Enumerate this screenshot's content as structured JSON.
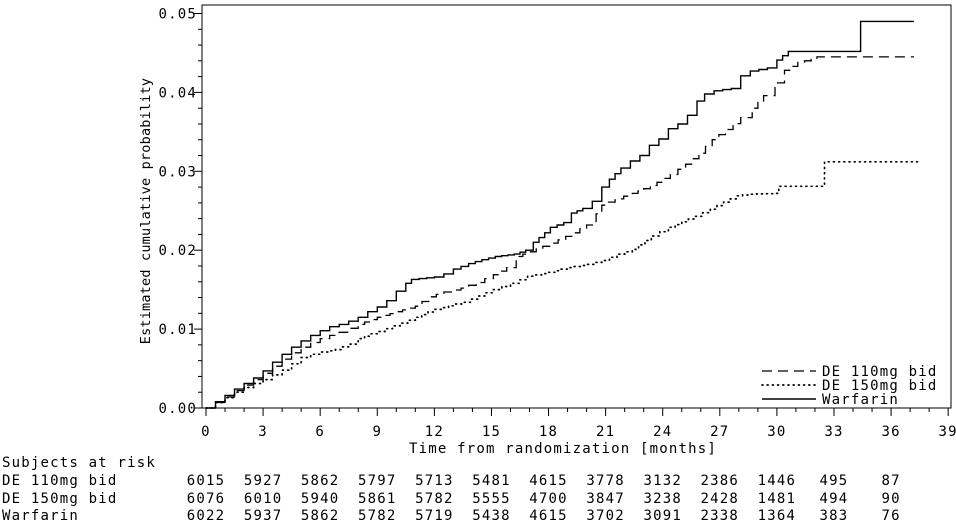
{
  "chart_data": {
    "type": "line",
    "subtype": "kaplan-meier-step",
    "title": "",
    "xlabel": "Time from randomization [months]",
    "ylabel": "Estimated cumulative probability",
    "xlim": [
      0,
      39
    ],
    "ylim": [
      0,
      0.05
    ],
    "x_ticks": [
      0,
      3,
      6,
      9,
      12,
      15,
      18,
      21,
      24,
      27,
      30,
      33,
      36,
      39
    ],
    "x_minor_step": 1,
    "y_ticks": [
      {
        "value": 0.0,
        "label": "0.00"
      },
      {
        "value": 0.01,
        "label": "0.01"
      },
      {
        "value": 0.02,
        "label": "0.02"
      },
      {
        "value": 0.03,
        "label": "0.03"
      },
      {
        "value": 0.04,
        "label": "0.04"
      },
      {
        "value": 0.05,
        "label": "0.05"
      }
    ],
    "y_minor_step": 0.002,
    "grid": false,
    "legend_position": "inside-bottom-right",
    "series": [
      {
        "name": "DE 110mg bid",
        "style": "dashed",
        "color": "#000000",
        "points": [
          [
            0,
            0
          ],
          [
            0.5,
            0.0007
          ],
          [
            1,
            0.0014
          ],
          [
            1.5,
            0.0022
          ],
          [
            2,
            0.0029
          ],
          [
            2.5,
            0.0036
          ],
          [
            3,
            0.0044
          ],
          [
            3.5,
            0.0053
          ],
          [
            4,
            0.0062
          ],
          [
            4.5,
            0.007
          ],
          [
            5,
            0.0077
          ],
          [
            5.5,
            0.0083
          ],
          [
            6,
            0.0088
          ],
          [
            6.5,
            0.0092
          ],
          [
            7,
            0.0096
          ],
          [
            7.5,
            0.0101
          ],
          [
            8,
            0.0106
          ],
          [
            9,
            0.0115
          ],
          [
            10,
            0.0122
          ],
          [
            11,
            0.0129
          ],
          [
            11.7,
            0.0141
          ],
          [
            12.5,
            0.0147
          ],
          [
            13.4,
            0.0152
          ],
          [
            14.2,
            0.0159
          ],
          [
            15.1,
            0.0169
          ],
          [
            15.8,
            0.0178
          ],
          [
            16.3,
            0.0192
          ],
          [
            17,
            0.0198
          ],
          [
            17.7,
            0.0205
          ],
          [
            18.5,
            0.0213
          ],
          [
            19.3,
            0.0222
          ],
          [
            20,
            0.0232
          ],
          [
            20.5,
            0.0246
          ],
          [
            20.8,
            0.0257
          ],
          [
            21.5,
            0.0265
          ],
          [
            22.4,
            0.0272
          ],
          [
            23,
            0.0278
          ],
          [
            23.7,
            0.0286
          ],
          [
            24.4,
            0.0296
          ],
          [
            25.2,
            0.0309
          ],
          [
            25.9,
            0.0323
          ],
          [
            26.6,
            0.034
          ],
          [
            27.3,
            0.0353
          ],
          [
            28.1,
            0.0368
          ],
          [
            28.7,
            0.038
          ],
          [
            29.3,
            0.0396
          ],
          [
            29.9,
            0.0412
          ],
          [
            30.4,
            0.0428
          ],
          [
            31.1,
            0.0438
          ],
          [
            31.8,
            0.0442
          ],
          [
            32.1,
            0.0445
          ],
          [
            37.2,
            0.0445
          ]
        ]
      },
      {
        "name": "DE 150mg bid",
        "style": "dotted",
        "color": "#000000",
        "points": [
          [
            0,
            0
          ],
          [
            0.5,
            0.0007
          ],
          [
            1,
            0.0013
          ],
          [
            1.5,
            0.002
          ],
          [
            2,
            0.0026
          ],
          [
            2.5,
            0.0031
          ],
          [
            3,
            0.0036
          ],
          [
            3.5,
            0.0042
          ],
          [
            4,
            0.0048
          ],
          [
            4.5,
            0.0056
          ],
          [
            5,
            0.0064
          ],
          [
            5.5,
            0.0068
          ],
          [
            6,
            0.0071
          ],
          [
            6.8,
            0.0074
          ],
          [
            7.5,
            0.0081
          ],
          [
            8,
            0.0088
          ],
          [
            9,
            0.0097
          ],
          [
            9.8,
            0.0104
          ],
          [
            11,
            0.0115
          ],
          [
            12,
            0.0125
          ],
          [
            13.5,
            0.0134
          ],
          [
            14.3,
            0.0142
          ],
          [
            15.1,
            0.015
          ],
          [
            16,
            0.0158
          ],
          [
            16.9,
            0.0167
          ],
          [
            18,
            0.0172
          ],
          [
            19,
            0.0178
          ],
          [
            20,
            0.0182
          ],
          [
            20.8,
            0.0187
          ],
          [
            21.6,
            0.0195
          ],
          [
            22.4,
            0.0201
          ],
          [
            23.4,
            0.0218
          ],
          [
            24.3,
            0.0229
          ],
          [
            25,
            0.0236
          ],
          [
            25.7,
            0.0243
          ],
          [
            26.5,
            0.0252
          ],
          [
            27.2,
            0.0261
          ],
          [
            27.9,
            0.0269
          ],
          [
            28.5,
            0.0271
          ],
          [
            29.8,
            0.0272
          ],
          [
            30.1,
            0.0281
          ],
          [
            32.3,
            0.0281
          ],
          [
            32.5,
            0.0312
          ],
          [
            37.5,
            0.0312
          ]
        ]
      },
      {
        "name": "Warfarin",
        "style": "solid",
        "color": "#000000",
        "points": [
          [
            0,
            0
          ],
          [
            0.5,
            0.0008
          ],
          [
            1,
            0.0016
          ],
          [
            1.5,
            0.0024
          ],
          [
            2,
            0.0031
          ],
          [
            2.5,
            0.0038
          ],
          [
            3,
            0.0047
          ],
          [
            3.5,
            0.0058
          ],
          [
            4,
            0.0068
          ],
          [
            4.5,
            0.0077
          ],
          [
            5,
            0.0085
          ],
          [
            5.5,
            0.0092
          ],
          [
            6,
            0.0098
          ],
          [
            6.5,
            0.0103
          ],
          [
            7,
            0.0106
          ],
          [
            7.5,
            0.011
          ],
          [
            8,
            0.0115
          ],
          [
            8.5,
            0.0122
          ],
          [
            9,
            0.0128
          ],
          [
            9.5,
            0.0136
          ],
          [
            10,
            0.0148
          ],
          [
            10.5,
            0.0158
          ],
          [
            10.8,
            0.0163
          ],
          [
            12,
            0.0166
          ],
          [
            12.5,
            0.017
          ],
          [
            13,
            0.0176
          ],
          [
            13.8,
            0.0183
          ],
          [
            14.5,
            0.0188
          ],
          [
            15.2,
            0.0192
          ],
          [
            16.2,
            0.0195
          ],
          [
            16.8,
            0.02
          ],
          [
            17.2,
            0.021
          ],
          [
            17.8,
            0.0222
          ],
          [
            18.1,
            0.0229
          ],
          [
            18.8,
            0.0235
          ],
          [
            19.2,
            0.0247
          ],
          [
            19.8,
            0.0253
          ],
          [
            20.3,
            0.0262
          ],
          [
            20.8,
            0.028
          ],
          [
            21.2,
            0.029
          ],
          [
            21.8,
            0.0304
          ],
          [
            22.3,
            0.0313
          ],
          [
            22.8,
            0.032
          ],
          [
            23.3,
            0.0333
          ],
          [
            23.8,
            0.0341
          ],
          [
            24.3,
            0.0354
          ],
          [
            24.8,
            0.036
          ],
          [
            25.3,
            0.0371
          ],
          [
            25.8,
            0.0389
          ],
          [
            26.2,
            0.0398
          ],
          [
            26.7,
            0.0402
          ],
          [
            27.6,
            0.0405
          ],
          [
            28.1,
            0.0421
          ],
          [
            28.6,
            0.0427
          ],
          [
            29.5,
            0.0431
          ],
          [
            30,
            0.0441
          ],
          [
            30.6,
            0.0452
          ],
          [
            34.3,
            0.0452
          ],
          [
            34.4,
            0.049
          ],
          [
            37.2,
            0.049
          ]
        ]
      }
    ]
  },
  "risk_table": {
    "title": "Subjects at risk",
    "time_points": [
      0,
      3,
      6,
      9,
      12,
      15,
      18,
      21,
      24,
      27,
      30,
      33,
      36
    ],
    "rows": [
      {
        "label": "DE 110mg bid",
        "counts": [
          6015,
          5927,
          5862,
          5797,
          5713,
          5481,
          4615,
          3778,
          3132,
          2386,
          1446,
          495,
          87
        ]
      },
      {
        "label": "DE 150mg bid",
        "counts": [
          6076,
          6010,
          5940,
          5861,
          5782,
          5555,
          4700,
          3847,
          3238,
          2428,
          1481,
          494,
          90
        ]
      },
      {
        "label": "Warfarin",
        "counts": [
          6022,
          5937,
          5862,
          5782,
          5719,
          5438,
          4615,
          3702,
          3091,
          2338,
          1364,
          383,
          76
        ]
      }
    ]
  },
  "colors": {
    "line": "#000000",
    "background": "#ffffff"
  }
}
